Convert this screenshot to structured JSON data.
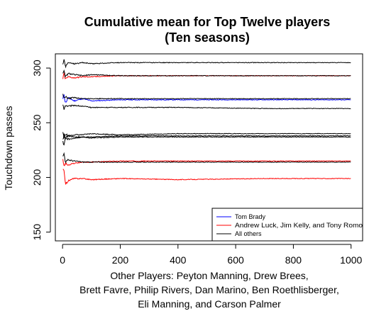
{
  "chart_data": {
    "type": "line",
    "title": [
      "Cumulative mean for Top Twelve players",
      "(Ten seasons)"
    ],
    "xlabel": [
      "Other Players: Peyton Manning, Drew Brees,",
      "Brett Favre, Philip Rivers, Dan Marino, Ben Roethlisberger,",
      "Eli Manning, and Carson Palmer"
    ],
    "ylabel": "Touchdown passes",
    "xlim": [
      -25,
      1040
    ],
    "ylim": [
      142,
      313
    ],
    "xticks": [
      0,
      200,
      400,
      600,
      800,
      1000
    ],
    "yticks": [
      150,
      200,
      250,
      300
    ],
    "grid": false,
    "legend_position": "bottom-right",
    "legend": [
      {
        "label": "Tom Brady",
        "color": "#0000ff"
      },
      {
        "label": "Andrew Luck, Jim Kelly, and Tony Romo",
        "color": "#ff0000"
      },
      {
        "label": "All others",
        "color": "#000000"
      }
    ],
    "series": [
      {
        "group": "Tom Brady",
        "color": "#0000ff",
        "x": [
          1,
          5,
          10,
          20,
          40,
          70,
          100,
          200,
          400,
          700,
          1000
        ],
        "y": [
          271,
          276,
          268,
          273,
          270,
          272,
          270,
          271,
          271,
          271,
          271
        ]
      },
      {
        "group": "Andrew Luck, Jim Kelly, and Tony Romo",
        "color": "#ff0000",
        "x": [
          1,
          5,
          10,
          20,
          40,
          70,
          100,
          200,
          400,
          700,
          1000
        ],
        "y": [
          289,
          295,
          290,
          292,
          291,
          292,
          292,
          293,
          293,
          293,
          293
        ]
      },
      {
        "group": "Andrew Luck, Jim Kelly, and Tony Romo",
        "color": "#ff0000",
        "x": [
          1,
          5,
          10,
          20,
          40,
          70,
          100,
          200,
          400,
          700,
          1000
        ],
        "y": [
          218,
          210,
          213,
          211,
          213,
          214,
          214,
          215,
          215,
          215,
          215
        ]
      },
      {
        "group": "Andrew Luck, Jim Kelly, and Tony Romo",
        "color": "#ff0000",
        "x": [
          1,
          5,
          10,
          20,
          40,
          70,
          100,
          200,
          400,
          700,
          1000
        ],
        "y": [
          210,
          205,
          194,
          197,
          199,
          199,
          198,
          199,
          198,
          199,
          199
        ]
      },
      {
        "group": "All others",
        "color": "#000000",
        "x": [
          1,
          5,
          10,
          20,
          40,
          70,
          100,
          200,
          400,
          700,
          1000
        ],
        "y": [
          303,
          308,
          301,
          305,
          304,
          305,
          304,
          305,
          305,
          305,
          305
        ]
      },
      {
        "group": "All others",
        "color": "#000000",
        "x": [
          1,
          5,
          10,
          20,
          40,
          70,
          100,
          200,
          400,
          700,
          1000
        ],
        "y": [
          293,
          297,
          292,
          295,
          294,
          293,
          294,
          293,
          293,
          293,
          293
        ]
      },
      {
        "group": "All others",
        "color": "#000000",
        "x": [
          1,
          5,
          10,
          20,
          40,
          70,
          100,
          200,
          400,
          700,
          1000
        ],
        "y": [
          276,
          272,
          274,
          272,
          273,
          272,
          272,
          272,
          272,
          272,
          272
        ]
      },
      {
        "group": "All others",
        "color": "#000000",
        "x": [
          1,
          5,
          10,
          20,
          40,
          70,
          100,
          200,
          400,
          700,
          1000
        ],
        "y": [
          267,
          263,
          266,
          265,
          266,
          265,
          264,
          264,
          264,
          263,
          263
        ]
      },
      {
        "group": "All others",
        "color": "#000000",
        "x": [
          1,
          5,
          10,
          20,
          40,
          70,
          100,
          200,
          400,
          700,
          1000
        ],
        "y": [
          239,
          236,
          240,
          238,
          239,
          239,
          240,
          239,
          240,
          240,
          240
        ]
      },
      {
        "group": "All others",
        "color": "#000000",
        "x": [
          1,
          5,
          10,
          20,
          40,
          70,
          100,
          200,
          400,
          700,
          1000
        ],
        "y": [
          234,
          240,
          236,
          238,
          237,
          237,
          237,
          238,
          238,
          238,
          238
        ]
      },
      {
        "group": "All others",
        "color": "#000000",
        "x": [
          1,
          5,
          10,
          20,
          40,
          70,
          100,
          200,
          400,
          700,
          1000
        ],
        "y": [
          233,
          229,
          236,
          235,
          236,
          237,
          236,
          237,
          237,
          237,
          237
        ]
      },
      {
        "group": "All others",
        "color": "#000000",
        "x": [
          1,
          5,
          10,
          20,
          40,
          70,
          100,
          200,
          400,
          700,
          1000
        ],
        "y": [
          218,
          222,
          214,
          216,
          215,
          214,
          214,
          214,
          214,
          214,
          214
        ]
      }
    ]
  }
}
